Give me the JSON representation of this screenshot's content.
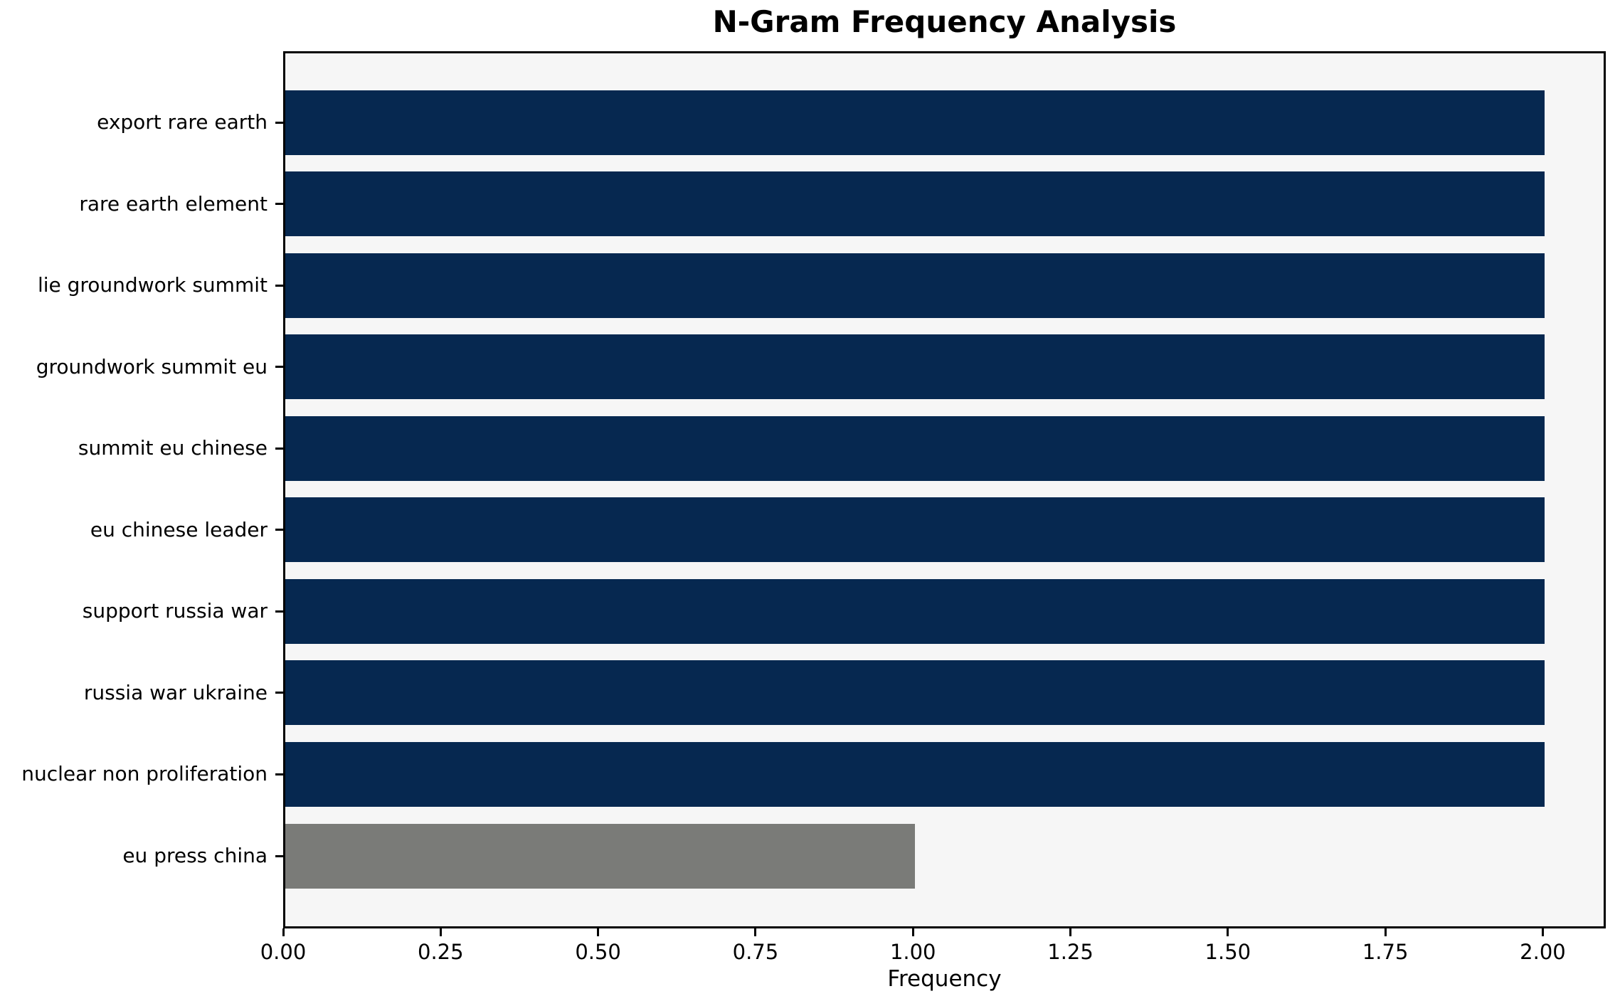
{
  "chart_data": {
    "type": "bar",
    "orientation": "horizontal",
    "title": "N-Gram Frequency Analysis",
    "xlabel": "Frequency",
    "ylabel": "",
    "categories": [
      "export rare earth",
      "rare earth element",
      "lie groundwork summit",
      "groundwork summit eu",
      "summit eu chinese",
      "eu chinese leader",
      "support russia war",
      "russia war ukraine",
      "nuclear non proliferation",
      "eu press china"
    ],
    "values": [
      2,
      2,
      2,
      2,
      2,
      2,
      2,
      2,
      2,
      1
    ],
    "bar_colors": [
      "#062850",
      "#062850",
      "#062850",
      "#062850",
      "#062850",
      "#062850",
      "#062850",
      "#062850",
      "#062850",
      "#7a7b78"
    ],
    "xlim": [
      0,
      2.1
    ],
    "xticks": [
      0,
      0.25,
      0.5,
      0.75,
      1.0,
      1.25,
      1.5,
      1.75,
      2.0
    ],
    "xtick_labels": [
      "0.00",
      "0.25",
      "0.50",
      "0.75",
      "1.00",
      "1.25",
      "1.50",
      "1.75",
      "2.00"
    ],
    "grid": false,
    "legend": "none",
    "plot_background": "#f6f6f6",
    "figure_background": "#ffffff",
    "frame_color": "#000000",
    "text_color": "#000000"
  }
}
